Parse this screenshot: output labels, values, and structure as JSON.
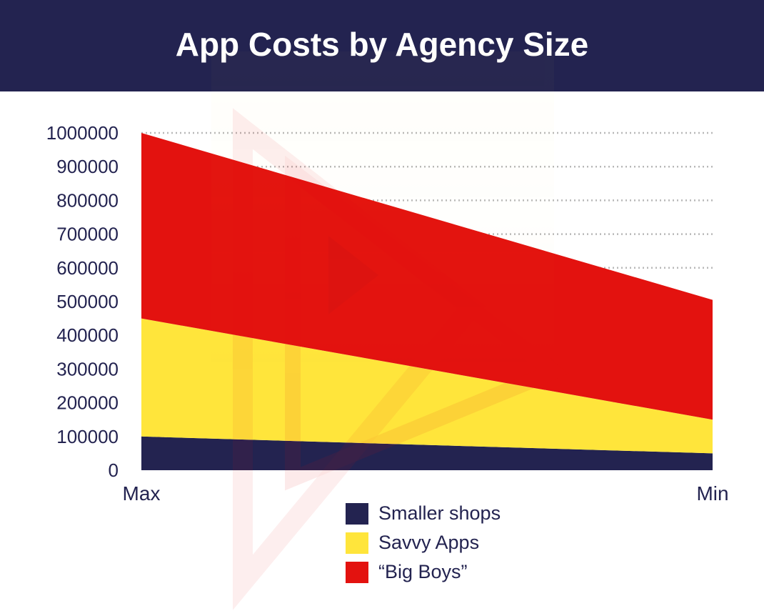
{
  "title": "App Costs by Agency Size",
  "chart_data": {
    "type": "area",
    "stacked": true,
    "title": "App Costs by Agency Size",
    "categories": [
      "Max",
      "Min"
    ],
    "ylim": [
      0,
      1000000
    ],
    "yticks": [
      0,
      100000,
      200000,
      300000,
      400000,
      500000,
      600000,
      700000,
      800000,
      900000,
      1000000
    ],
    "grid": true,
    "legend_position": "bottom",
    "series": [
      {
        "name": "Smaller shops",
        "values": [
          100000,
          50000
        ],
        "color": "#232350"
      },
      {
        "name": "Savvy Apps",
        "values": [
          350000,
          100000
        ],
        "color": "#ffe53b"
      },
      {
        "name": "“Big Boys”",
        "values": [
          550000,
          355000
        ],
        "color": "#e3120f"
      }
    ]
  },
  "colors": {
    "header_bg": "#232350",
    "text": "#232350",
    "grid": "#b8b8b8"
  }
}
